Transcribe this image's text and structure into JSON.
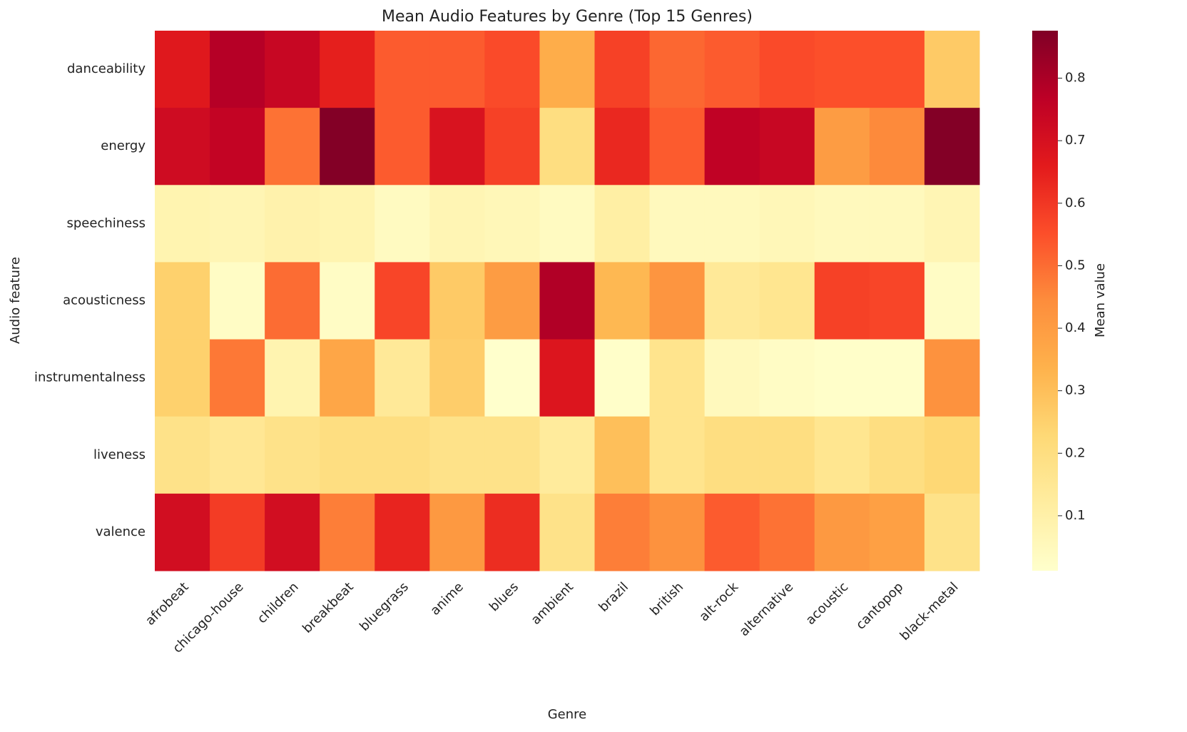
{
  "chart_data": {
    "type": "heatmap",
    "title": "Mean Audio Features by Genre (Top 15 Genres)",
    "x_label": "Genre",
    "y_label": "Audio feature",
    "colorbar_label": "Mean value",
    "colormap": "YlOrRd",
    "x": [
      "afrobeat",
      "chicago-house",
      "children",
      "breakbeat",
      "bluegrass",
      "anime",
      "blues",
      "ambient",
      "brazil",
      "british",
      "alt-rock",
      "alternative",
      "acoustic",
      "cantopop",
      "black-metal"
    ],
    "y": [
      "danceability",
      "energy",
      "speechiness",
      "acousticness",
      "instrumentalness",
      "liveness",
      "valence"
    ],
    "z": [
      [
        0.67,
        0.78,
        0.74,
        0.65,
        0.53,
        0.53,
        0.56,
        0.35,
        0.58,
        0.51,
        0.53,
        0.56,
        0.55,
        0.55,
        0.27
      ],
      [
        0.72,
        0.75,
        0.49,
        0.87,
        0.53,
        0.69,
        0.58,
        0.2,
        0.63,
        0.53,
        0.76,
        0.74,
        0.4,
        0.45,
        0.87
      ],
      [
        0.08,
        0.07,
        0.09,
        0.08,
        0.04,
        0.07,
        0.06,
        0.04,
        0.11,
        0.05,
        0.05,
        0.06,
        0.05,
        0.05,
        0.07
      ],
      [
        0.25,
        0.03,
        0.5,
        0.03,
        0.57,
        0.27,
        0.4,
        0.79,
        0.32,
        0.42,
        0.14,
        0.16,
        0.58,
        0.57,
        0.03
      ],
      [
        0.25,
        0.48,
        0.08,
        0.37,
        0.14,
        0.26,
        0.01,
        0.68,
        0.02,
        0.17,
        0.05,
        0.03,
        0.02,
        0.02,
        0.43
      ],
      [
        0.18,
        0.15,
        0.18,
        0.2,
        0.2,
        0.18,
        0.18,
        0.13,
        0.3,
        0.17,
        0.2,
        0.2,
        0.16,
        0.2,
        0.23
      ],
      [
        0.71,
        0.59,
        0.71,
        0.47,
        0.64,
        0.41,
        0.62,
        0.18,
        0.47,
        0.43,
        0.53,
        0.49,
        0.41,
        0.39,
        0.18
      ]
    ],
    "zlim": [
      0.012,
      0.876
    ],
    "zticks": [
      0.1,
      0.2,
      0.3,
      0.4,
      0.5,
      0.6,
      0.7,
      0.8
    ]
  }
}
